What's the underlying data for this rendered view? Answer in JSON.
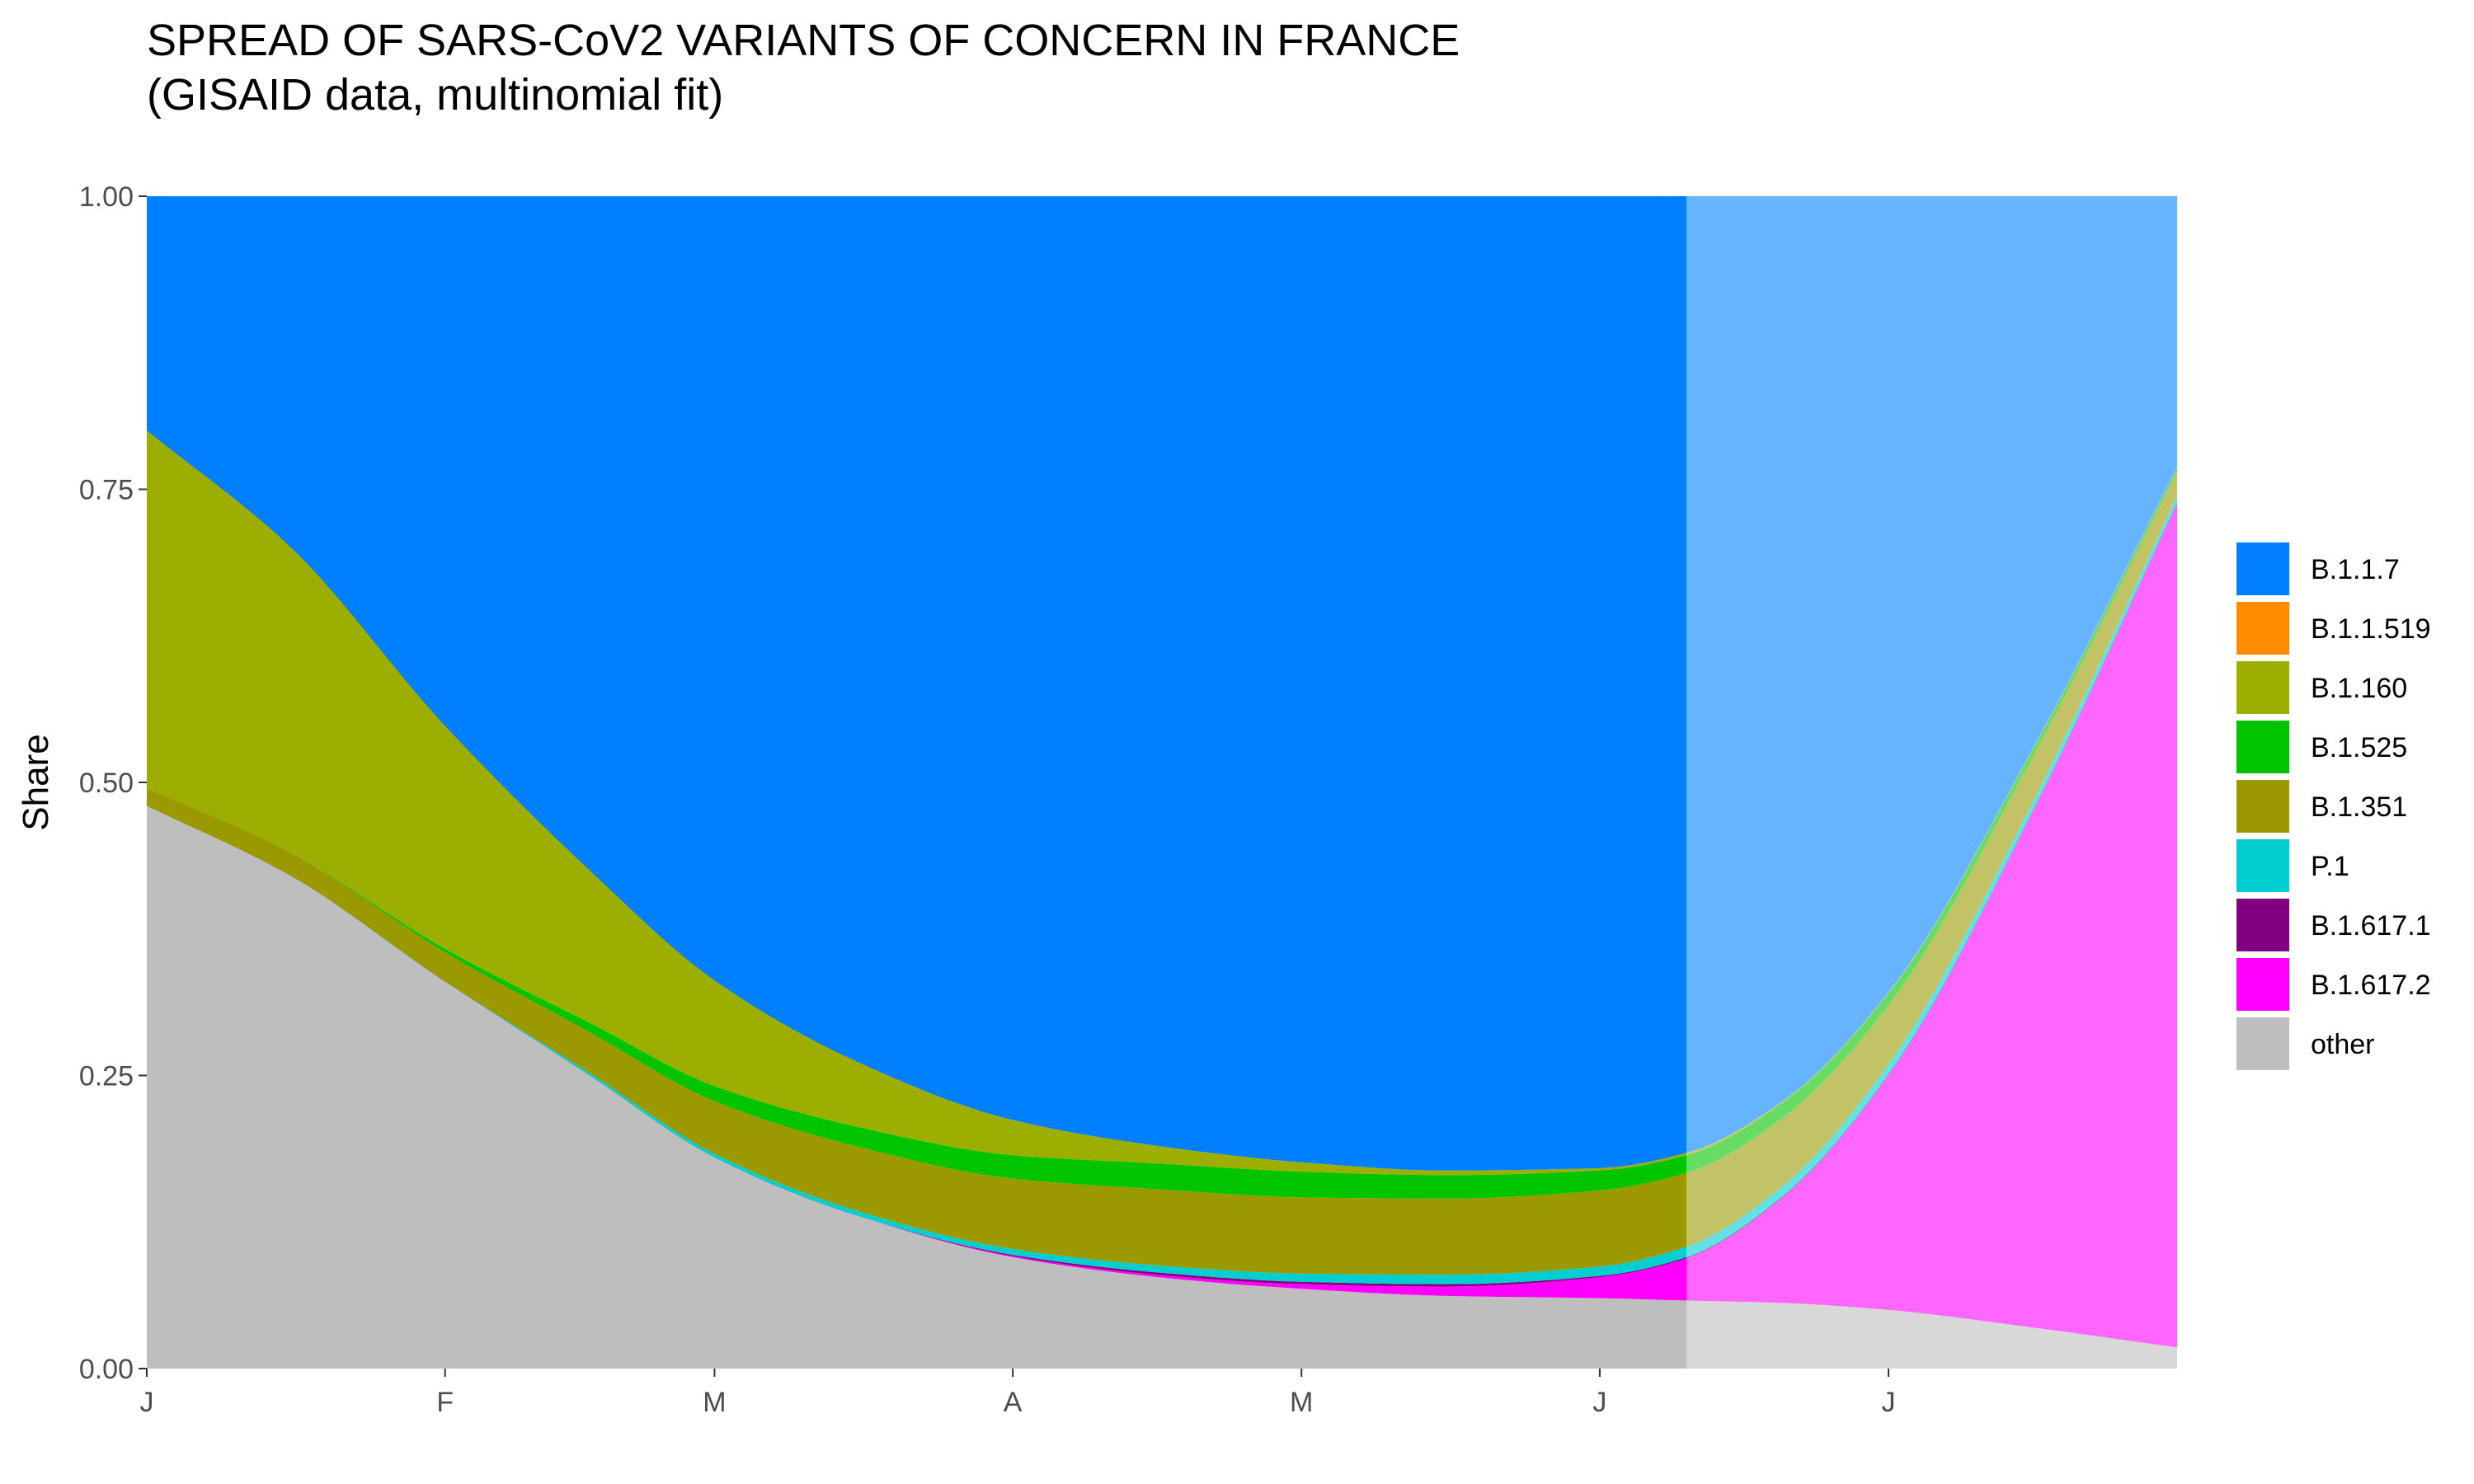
{
  "title": {
    "line1": "SPREAD OF SARS-CoV2 VARIANTS OF CONCERN IN FRANCE",
    "line2": "(GISAID data, multinomial fit)"
  },
  "chart_data": {
    "type": "area",
    "stacked": true,
    "xlabel": "",
    "ylabel": "Share",
    "x_tick_labels": [
      "J",
      "F",
      "M",
      "A",
      "M",
      "J",
      "J"
    ],
    "x_ticks": [
      "2021-01-01",
      "2021-02-01",
      "2021-03-01",
      "2021-04-01",
      "2021-05-01",
      "2021-06-01",
      "2021-07-01"
    ],
    "xlim": [
      "2021-01-01",
      "2021-07-31"
    ],
    "ylim": [
      0,
      1
    ],
    "y_ticks": [
      0,
      0.25,
      0.5,
      0.75,
      1
    ],
    "y_tick_labels": [
      "0.00",
      "0.25",
      "0.50",
      "0.75",
      "1.00"
    ],
    "observed_data_end": "2021-06-10",
    "projection_shaded": true,
    "grid": false,
    "legend_position": "right",
    "x": [
      "2021-01-01",
      "2021-01-16",
      "2021-02-01",
      "2021-02-16",
      "2021-03-01",
      "2021-03-16",
      "2021-04-01",
      "2021-04-16",
      "2021-05-01",
      "2021-05-16",
      "2021-06-01",
      "2021-06-10",
      "2021-06-20",
      "2021-07-01",
      "2021-07-16",
      "2021-07-31"
    ],
    "series": [
      {
        "name": "other",
        "color": "#BEBEBE",
        "values": [
          0.48,
          0.42,
          0.33,
          0.25,
          0.18,
          0.13,
          0.095,
          0.078,
          0.068,
          0.062,
          0.06,
          0.058,
          0.056,
          0.05,
          0.035,
          0.018
        ]
      },
      {
        "name": "B.1.617.2",
        "color": "#FF00FF",
        "values": [
          0,
          0,
          0,
          0,
          0,
          0,
          0.001,
          0.002,
          0.004,
          0.008,
          0.018,
          0.036,
          0.09,
          0.2,
          0.44,
          0.72
        ]
      },
      {
        "name": "B.1.617.1",
        "color": "#800080",
        "values": [
          0,
          0,
          0,
          0,
          0,
          0,
          0.001,
          0.002,
          0.002,
          0.002,
          0.001,
          0.001,
          0.001,
          0.001,
          0.001,
          0.001
        ]
      },
      {
        "name": "P.1",
        "color": "#00CED1",
        "values": [
          0,
          0,
          0,
          0.002,
          0.003,
          0.004,
          0.005,
          0.006,
          0.007,
          0.008,
          0.008,
          0.009,
          0.009,
          0.009,
          0.008,
          0.006
        ]
      },
      {
        "name": "B.1.351",
        "color": "#9A9A00",
        "values": [
          0.015,
          0.02,
          0.025,
          0.035,
          0.045,
          0.055,
          0.06,
          0.065,
          0.065,
          0.065,
          0.065,
          0.063,
          0.058,
          0.05,
          0.038,
          0.02
        ]
      },
      {
        "name": "B.1.525",
        "color": "#00C400",
        "values": [
          0,
          0,
          0.003,
          0.008,
          0.013,
          0.017,
          0.02,
          0.022,
          0.022,
          0.02,
          0.017,
          0.015,
          0.013,
          0.01,
          0.006,
          0.003
        ]
      },
      {
        "name": "B.1.160",
        "color": "#9CAF00",
        "values": [
          0.305,
          0.26,
          0.19,
          0.13,
          0.09,
          0.055,
          0.03,
          0.015,
          0.008,
          0.004,
          0.002,
          0.002,
          0.001,
          0.001,
          0.001,
          0.001
        ]
      },
      {
        "name": "B.1.1.519",
        "color": "#FF8C00",
        "values": [
          0,
          0,
          0,
          0,
          0,
          0,
          0,
          0,
          0,
          0,
          0,
          0,
          0,
          0,
          0,
          0
        ]
      },
      {
        "name": "B.1.1.7",
        "color": "#0080FF",
        "values": [
          0.2,
          0.3,
          0.452,
          0.575,
          0.669,
          0.739,
          0.788,
          0.81,
          0.824,
          0.831,
          0.829,
          0.816,
          0.772,
          0.679,
          0.471,
          0.231
        ]
      }
    ],
    "legend": [
      "B.1.1.7",
      "B.1.1.519",
      "B.1.160",
      "B.1.525",
      "B.1.351",
      "P.1",
      "B.1.617.1",
      "B.1.617.2",
      "other"
    ]
  }
}
